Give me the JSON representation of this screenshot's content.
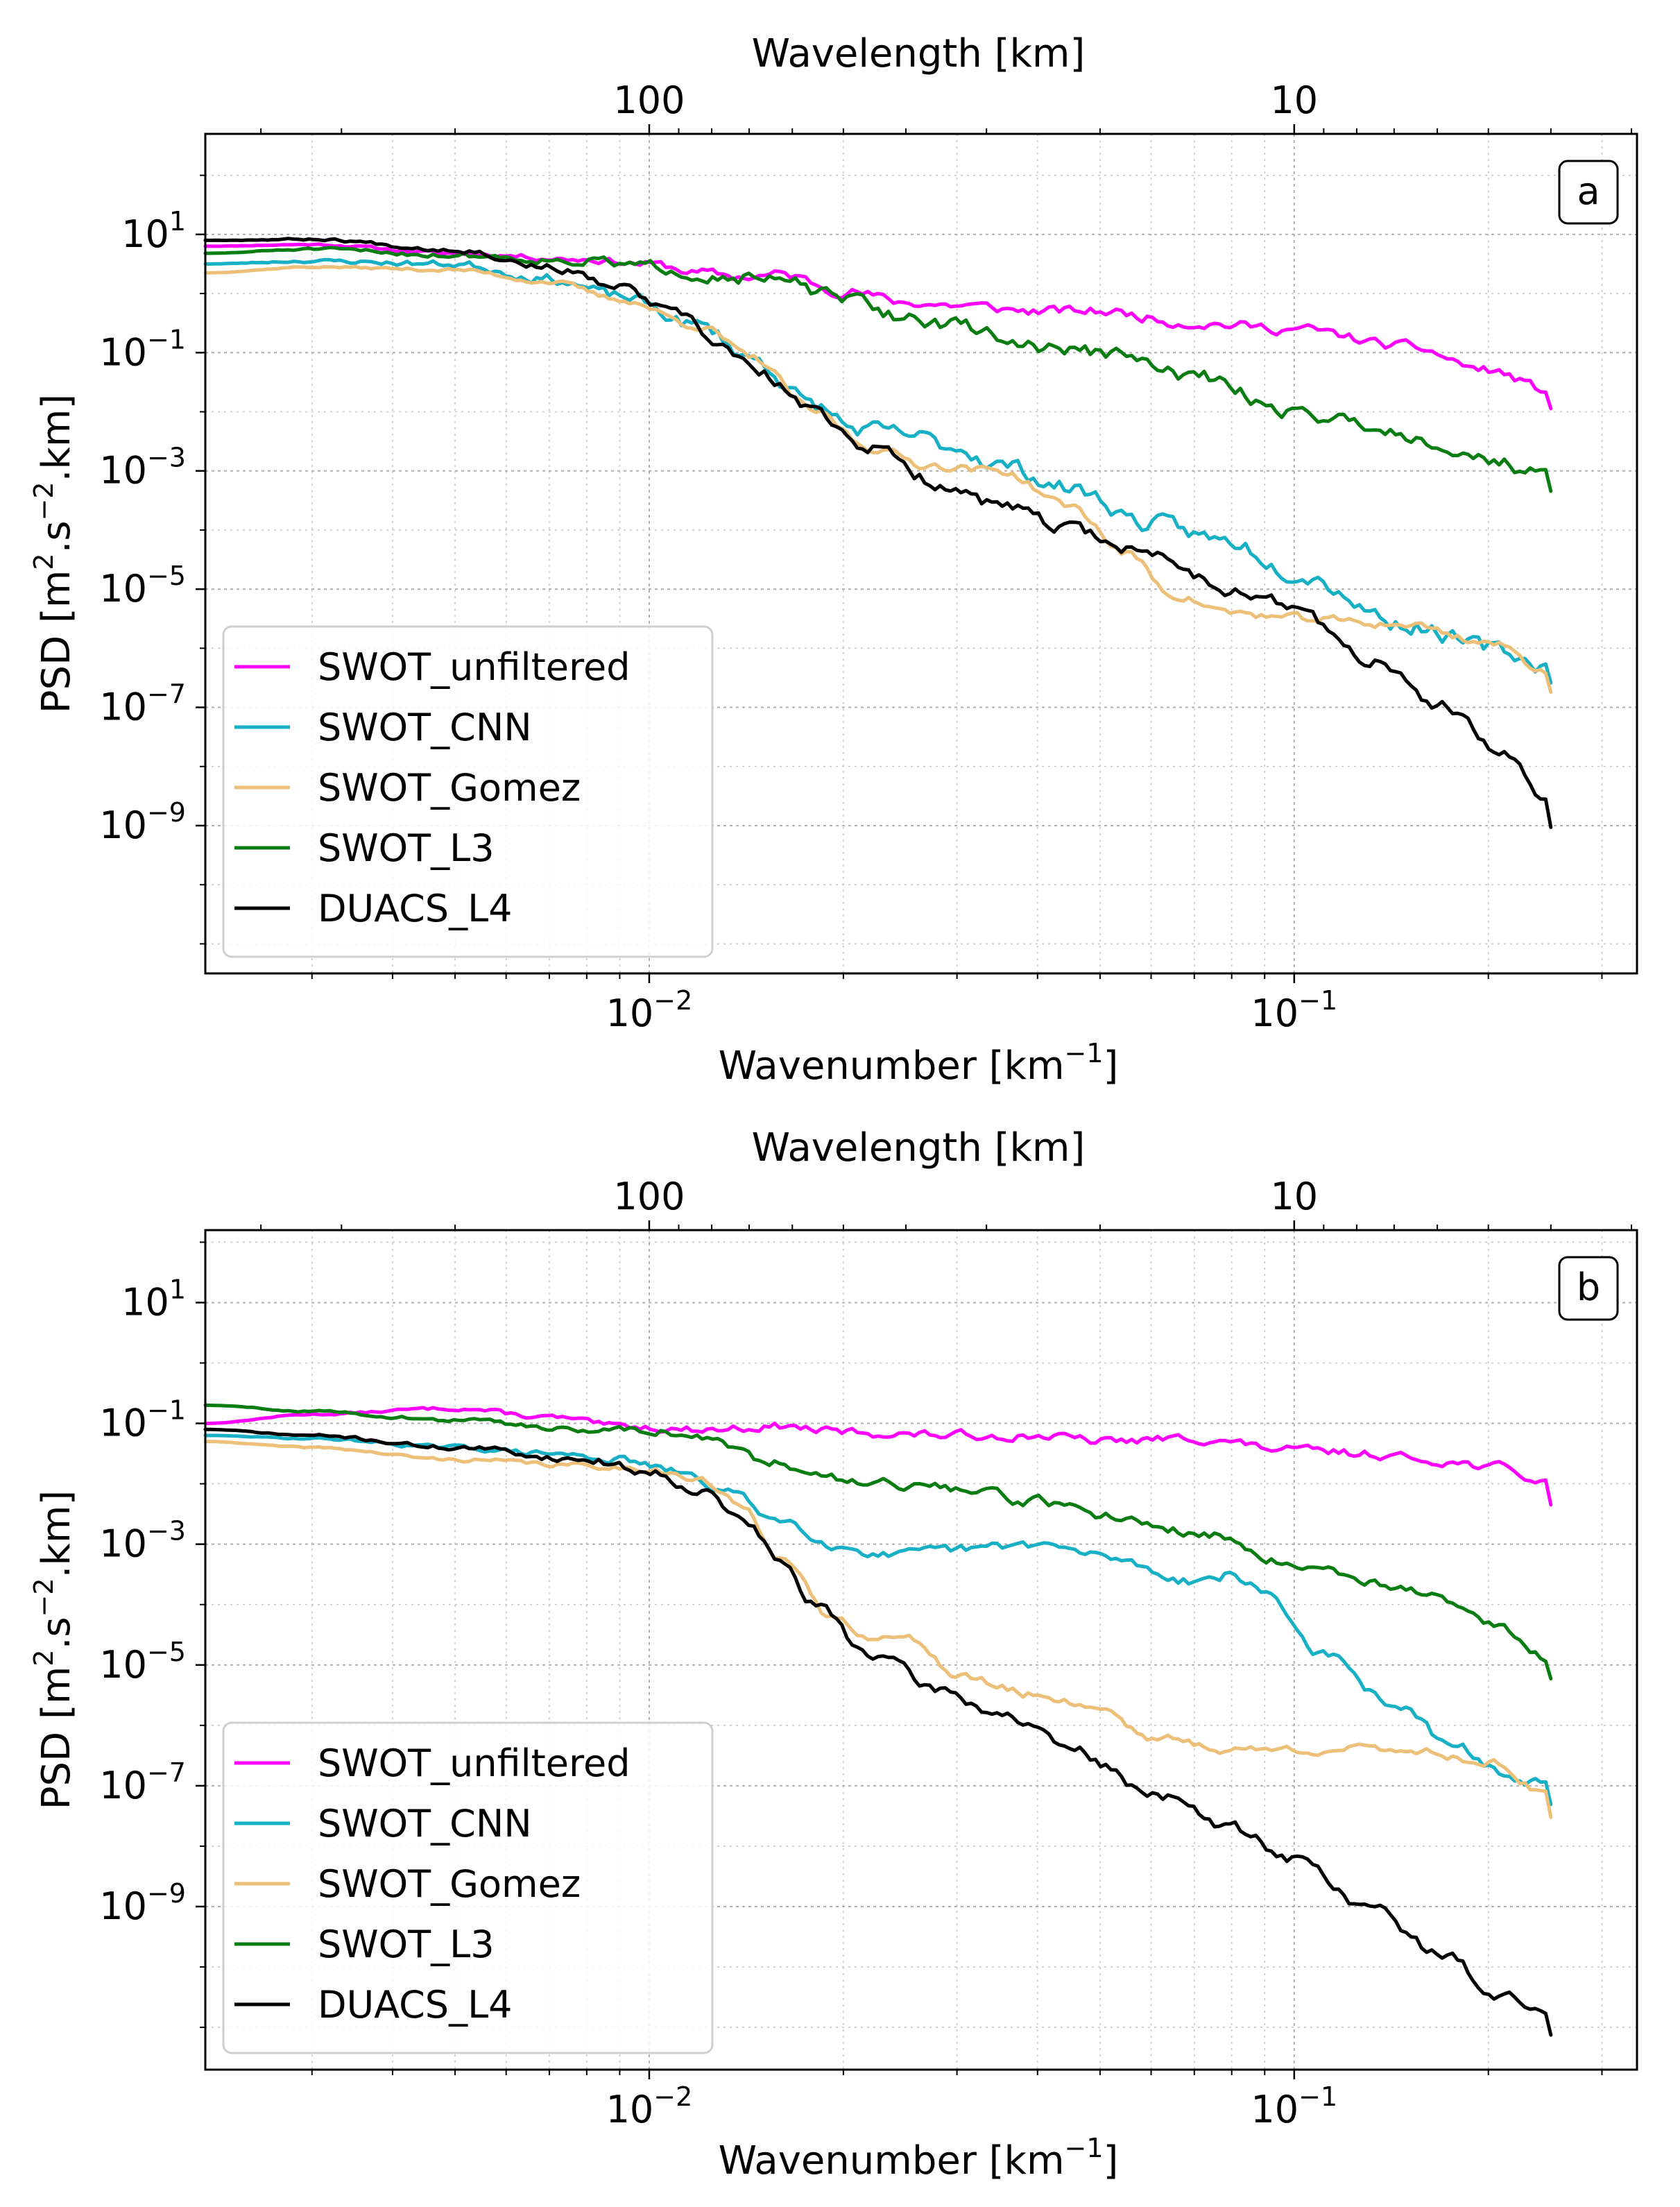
{
  "figure": {
    "panels": [
      "a",
      "b"
    ]
  },
  "chart_data": [
    {
      "type": "line",
      "panel_label": "a",
      "title": "",
      "xlabel": "Wavenumber [km",
      "xlabel_sup": "−1",
      "xlabel_end": "]",
      "ylabel": "PSD [m",
      "ylabel_sup1": "2",
      "ylabel_mid": ".s",
      "ylabel_sup2": "−2",
      "ylabel_end": ".km]",
      "top_xlabel": "Wavelength [km]",
      "xscale": "log",
      "yscale": "log",
      "xlim": [
        0.00205,
        0.34
      ],
      "ylim_log10": [
        -11.5,
        2.7
      ],
      "x_ticks": [
        {
          "value": 0.01,
          "base": "10",
          "exp": "−2"
        },
        {
          "value": 0.1,
          "base": "10",
          "exp": "−1"
        }
      ],
      "y_ticks": [
        {
          "value": 1,
          "base": "10",
          "exp": "1"
        },
        {
          "value": -1,
          "base": "10",
          "exp": "−1"
        },
        {
          "value": -3,
          "base": "10",
          "exp": "−3"
        },
        {
          "value": -5,
          "base": "10",
          "exp": "−5"
        },
        {
          "value": -7,
          "base": "10",
          "exp": "−7"
        },
        {
          "value": -9,
          "base": "10",
          "exp": "−9"
        }
      ],
      "top_ticks": [
        {
          "wavelength_km": 100,
          "label": "100"
        },
        {
          "wavelength_km": 10,
          "label": "10"
        }
      ],
      "grid": true,
      "legend_loc": "lower left",
      "series": [
        {
          "name": "SWOT_unfiltered",
          "color": "#ff00ff",
          "x": [
            0.00205,
            0.003,
            0.005,
            0.008,
            0.01,
            0.012,
            0.014,
            0.016,
            0.02,
            0.025,
            0.03,
            0.04,
            0.05,
            0.07,
            0.1,
            0.15,
            0.2,
            0.25
          ],
          "y_log10": [
            0.8,
            0.83,
            0.68,
            0.58,
            0.5,
            0.35,
            0.28,
            0.32,
            0.05,
            -0.15,
            -0.2,
            -0.3,
            -0.3,
            -0.5,
            -0.6,
            -0.9,
            -1.3,
            -1.65
          ],
          "noise": 0.07,
          "seed": 11
        },
        {
          "name": "SWOT_CNN",
          "color": "#17b0c4",
          "x": [
            0.00205,
            0.003,
            0.005,
            0.007,
            0.009,
            0.012,
            0.0145,
            0.018,
            0.021,
            0.025,
            0.03,
            0.035,
            0.045,
            0.06,
            0.08,
            0.1,
            0.15,
            0.2,
            0.25
          ],
          "y_log10": [
            0.5,
            0.55,
            0.5,
            0.25,
            -0.05,
            -0.55,
            -1.1,
            -1.9,
            -2.3,
            -2.4,
            -2.6,
            -2.9,
            -3.3,
            -3.9,
            -4.2,
            -4.7,
            -5.6,
            -6.0,
            -6.3
          ],
          "noise": 0.12,
          "seed": 23
        },
        {
          "name": "SWOT_Gomez",
          "color": "#ecc079",
          "x": [
            0.00205,
            0.003,
            0.005,
            0.007,
            0.009,
            0.012,
            0.0145,
            0.018,
            0.022,
            0.027,
            0.035,
            0.045,
            0.055,
            0.065,
            0.08,
            0.1,
            0.15,
            0.2,
            0.25
          ],
          "y_log10": [
            0.35,
            0.45,
            0.4,
            0.2,
            -0.1,
            -0.55,
            -1.1,
            -2.0,
            -2.6,
            -2.9,
            -3.0,
            -3.6,
            -4.4,
            -5.1,
            -5.4,
            -5.5,
            -5.6,
            -5.9,
            -6.4
          ],
          "noise": 0.06,
          "seed": 37
        },
        {
          "name": "SWOT_L3",
          "color": "#0a7d12",
          "x": [
            0.00205,
            0.003,
            0.005,
            0.008,
            0.01,
            0.013,
            0.016,
            0.02,
            0.025,
            0.03,
            0.04,
            0.05,
            0.07,
            0.1,
            0.13,
            0.15,
            0.2,
            0.25
          ],
          "y_log10": [
            0.68,
            0.75,
            0.65,
            0.55,
            0.45,
            0.3,
            0.2,
            -0.1,
            -0.4,
            -0.55,
            -0.9,
            -1.0,
            -1.4,
            -2.0,
            -2.2,
            -2.4,
            -2.8,
            -3.1
          ],
          "noise": 0.1,
          "seed": 51
        },
        {
          "name": "DUACS_L4",
          "color": "#000000",
          "x": [
            0.00205,
            0.003,
            0.005,
            0.007,
            0.009,
            0.011,
            0.013,
            0.015,
            0.018,
            0.022,
            0.028,
            0.035,
            0.045,
            0.06,
            0.08,
            0.1,
            0.13,
            0.17,
            0.21,
            0.25
          ],
          "y_log10": [
            0.9,
            0.92,
            0.75,
            0.45,
            0.1,
            -0.35,
            -0.9,
            -1.4,
            -2.0,
            -2.6,
            -3.2,
            -3.6,
            -4.0,
            -4.4,
            -5.0,
            -5.3,
            -6.2,
            -7.0,
            -7.8,
            -8.6
          ],
          "noise": 0.09,
          "seed": 67
        }
      ]
    },
    {
      "type": "line",
      "panel_label": "b",
      "title": "",
      "xlabel": "Wavenumber [km",
      "xlabel_sup": "−1",
      "xlabel_end": "]",
      "ylabel": "PSD [m",
      "ylabel_sup1": "2",
      "ylabel_mid": ".s",
      "ylabel_sup2": "−2",
      "ylabel_end": ".km]",
      "top_xlabel": "Wavelength [km]",
      "xscale": "log",
      "yscale": "log",
      "xlim": [
        0.00205,
        0.34
      ],
      "ylim_log10": [
        -11.7,
        2.2
      ],
      "x_ticks": [
        {
          "value": 0.01,
          "base": "10",
          "exp": "−2"
        },
        {
          "value": 0.1,
          "base": "10",
          "exp": "−1"
        }
      ],
      "y_ticks": [
        {
          "value": 1,
          "base": "10",
          "exp": "1"
        },
        {
          "value": -1,
          "base": "10",
          "exp": "−1"
        },
        {
          "value": -3,
          "base": "10",
          "exp": "−3"
        },
        {
          "value": -5,
          "base": "10",
          "exp": "−5"
        },
        {
          "value": -7,
          "base": "10",
          "exp": "−7"
        },
        {
          "value": -9,
          "base": "10",
          "exp": "−9"
        }
      ],
      "top_ticks": [
        {
          "wavelength_km": 100,
          "label": "100"
        },
        {
          "wavelength_km": 10,
          "label": "10"
        }
      ],
      "grid": true,
      "legend_loc": "lower left",
      "series": [
        {
          "name": "SWOT_unfiltered",
          "color": "#ff00ff",
          "x": [
            0.00205,
            0.003,
            0.005,
            0.007,
            0.009,
            0.012,
            0.016,
            0.02,
            0.03,
            0.04,
            0.05,
            0.07,
            0.1,
            0.13,
            0.16,
            0.2,
            0.25
          ],
          "y_log10": [
            -1.0,
            -0.85,
            -0.75,
            -0.9,
            -1.05,
            -1.1,
            -1.05,
            -1.15,
            -1.2,
            -1.2,
            -1.3,
            -1.25,
            -1.45,
            -1.5,
            -1.6,
            -1.7,
            -2.0
          ],
          "noise": 0.06,
          "seed": 13
        },
        {
          "name": "SWOT_CNN",
          "color": "#17b0c4",
          "x": [
            0.00205,
            0.003,
            0.005,
            0.007,
            0.009,
            0.011,
            0.013,
            0.016,
            0.02,
            0.024,
            0.03,
            0.04,
            0.05,
            0.07,
            0.08,
            0.09,
            0.11,
            0.14,
            0.18,
            0.22,
            0.25
          ],
          "y_log10": [
            -1.2,
            -1.25,
            -1.4,
            -1.5,
            -1.6,
            -1.8,
            -2.1,
            -2.6,
            -3.05,
            -3.2,
            -3.1,
            -3.0,
            -3.2,
            -3.6,
            -3.5,
            -3.8,
            -4.8,
            -5.6,
            -6.4,
            -6.9,
            -7.0
          ],
          "noise": 0.07,
          "seed": 29
        },
        {
          "name": "SWOT_Gomez",
          "color": "#ecc079",
          "x": [
            0.00205,
            0.003,
            0.005,
            0.008,
            0.01,
            0.012,
            0.014,
            0.016,
            0.019,
            0.022,
            0.026,
            0.03,
            0.04,
            0.05,
            0.06,
            0.08,
            0.1,
            0.15,
            0.2,
            0.25
          ],
          "y_log10": [
            -1.3,
            -1.4,
            -1.6,
            -1.7,
            -1.75,
            -1.95,
            -2.4,
            -3.2,
            -4.2,
            -4.5,
            -4.6,
            -5.2,
            -5.5,
            -5.7,
            -6.2,
            -6.4,
            -6.4,
            -6.4,
            -6.6,
            -7.2
          ],
          "noise": 0.06,
          "seed": 41
        },
        {
          "name": "SWOT_L3",
          "color": "#0a7d12",
          "x": [
            0.00205,
            0.003,
            0.005,
            0.008,
            0.01,
            0.012,
            0.015,
            0.02,
            0.025,
            0.03,
            0.04,
            0.05,
            0.07,
            0.1,
            0.13,
            0.16,
            0.2,
            0.25
          ],
          "y_log10": [
            -0.7,
            -0.8,
            -0.95,
            -1.1,
            -1.1,
            -1.25,
            -1.6,
            -1.9,
            -2.0,
            -2.1,
            -2.3,
            -2.5,
            -2.8,
            -3.3,
            -3.6,
            -3.8,
            -4.3,
            -4.9
          ],
          "noise": 0.07,
          "seed": 59
        },
        {
          "name": "DUACS_L4",
          "color": "#000000",
          "x": [
            0.00205,
            0.003,
            0.005,
            0.008,
            0.01,
            0.012,
            0.014,
            0.016,
            0.018,
            0.022,
            0.028,
            0.035,
            0.045,
            0.06,
            0.08,
            0.1,
            0.13,
            0.17,
            0.21,
            0.25
          ],
          "y_log10": [
            -1.1,
            -1.2,
            -1.4,
            -1.6,
            -1.8,
            -2.1,
            -2.6,
            -3.3,
            -4.0,
            -4.8,
            -5.4,
            -5.8,
            -6.4,
            -7.1,
            -7.7,
            -8.2,
            -9.0,
            -9.8,
            -10.5,
            -10.8
          ],
          "noise": 0.08,
          "seed": 71
        }
      ]
    }
  ]
}
